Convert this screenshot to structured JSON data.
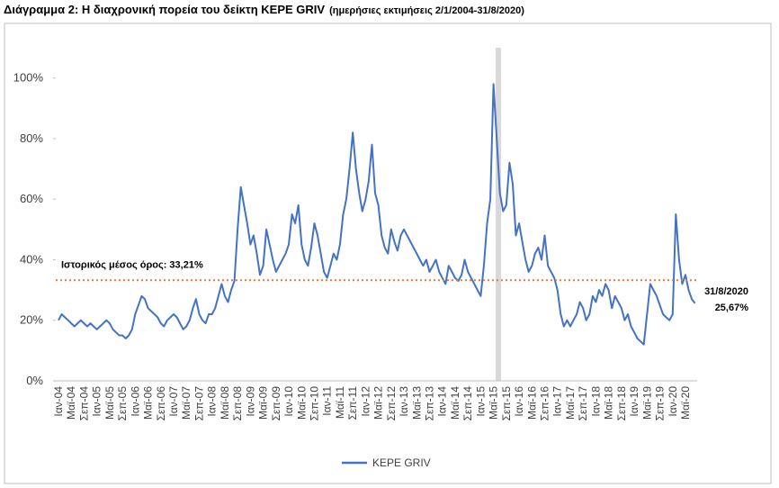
{
  "chart_data": {
    "type": "line",
    "title": "Διάγραμμα 2: Η διαχρονική πορεία του δείκτη ΚΕΡΕ GRIV",
    "subtitle": "(ημερήσιες εκτιμήσεις 2/1/2004-31/8/2020)",
    "categories": [
      "Ιαν-04",
      null,
      null,
      null,
      "Μαϊ-04",
      null,
      null,
      null,
      "Σεπ-04",
      null,
      null,
      null,
      "Ιαν-05",
      null,
      null,
      null,
      "Μαϊ-05",
      null,
      null,
      null,
      "Σεπ-05",
      null,
      null,
      null,
      "Ιαν-06",
      null,
      null,
      null,
      "Μαϊ-06",
      null,
      null,
      null,
      "Σεπ-06",
      null,
      null,
      null,
      "Ιαν-07",
      null,
      null,
      null,
      "Μαϊ-07",
      null,
      null,
      null,
      "Σεπ-07",
      null,
      null,
      null,
      "Ιαν-08",
      null,
      null,
      null,
      "Μαϊ-08",
      null,
      null,
      null,
      "Σεπ-08",
      null,
      null,
      null,
      "Ιαν-09",
      null,
      null,
      null,
      "Μαϊ-09",
      null,
      null,
      null,
      "Σεπ-09",
      null,
      null,
      null,
      "Ιαν-10",
      null,
      null,
      null,
      "Μαϊ-10",
      null,
      null,
      null,
      "Σεπ-10",
      null,
      null,
      null,
      "Ιαν-11",
      null,
      null,
      null,
      "Μαϊ-11",
      null,
      null,
      null,
      "Σεπ-11",
      null,
      null,
      null,
      "Ιαν-12",
      null,
      null,
      null,
      "Μαϊ-12",
      null,
      null,
      null,
      "Σεπ-12",
      null,
      null,
      null,
      "Ιαν-13",
      null,
      null,
      null,
      "Μαϊ-13",
      null,
      null,
      null,
      "Σεπ-13",
      null,
      null,
      null,
      "Ιαν-14",
      null,
      null,
      null,
      "Μαϊ-14",
      null,
      null,
      null,
      "Σεπ-14",
      null,
      null,
      null,
      "Ιαν-15",
      null,
      null,
      null,
      "Μαϊ-15",
      null,
      null,
      null,
      "Σεπ-15",
      null,
      null,
      null,
      "Ιαν-16",
      null,
      null,
      null,
      "Μαϊ-16",
      null,
      null,
      null,
      "Σεπ-16",
      null,
      null,
      null,
      "Ιαν-17",
      null,
      null,
      null,
      "Μαϊ-17",
      null,
      null,
      null,
      "Σεπ-17",
      null,
      null,
      null,
      "Ιαν-18",
      null,
      null,
      null,
      "Μαϊ-18",
      null,
      null,
      null,
      "Σεπ-18",
      null,
      null,
      null,
      "Ιαν-19",
      null,
      null,
      null,
      "Μαϊ-19",
      null,
      null,
      null,
      "Σεπ-19",
      null,
      null,
      null,
      "Ιαν-20",
      null,
      null,
      null,
      "Μαϊ-20",
      null,
      null,
      null
    ],
    "series": [
      {
        "name": "ΚΕΡΕ GRIV",
        "color": "#4472c4",
        "values": [
          20,
          22,
          21,
          20,
          19,
          18,
          19,
          20,
          19,
          18,
          19,
          18,
          17,
          18,
          19,
          20,
          19,
          17,
          16,
          15,
          15,
          14,
          15,
          17,
          22,
          25,
          28,
          27,
          24,
          23,
          22,
          21,
          19,
          18,
          20,
          21,
          22,
          21,
          19,
          17,
          18,
          20,
          24,
          27,
          22,
          20,
          19,
          22,
          22,
          24,
          28,
          32,
          28,
          26,
          30,
          33,
          50,
          64,
          58,
          52,
          45,
          48,
          42,
          35,
          38,
          50,
          45,
          40,
          36,
          38,
          40,
          42,
          45,
          55,
          52,
          58,
          45,
          40,
          38,
          44,
          52,
          48,
          42,
          36,
          34,
          38,
          42,
          40,
          45,
          55,
          60,
          70,
          82,
          70,
          62,
          56,
          60,
          66,
          78,
          62,
          58,
          48,
          44,
          42,
          50,
          46,
          43,
          48,
          50,
          48,
          46,
          44,
          42,
          40,
          38,
          40,
          36,
          38,
          40,
          36,
          34,
          32,
          38,
          36,
          34,
          33,
          35,
          40,
          36,
          34,
          32,
          30,
          28,
          38,
          52,
          60,
          98,
          80,
          62,
          56,
          58,
          72,
          65,
          48,
          52,
          46,
          40,
          36,
          38,
          42,
          44,
          40,
          48,
          38,
          36,
          34,
          30,
          22,
          18,
          20,
          18,
          20,
          22,
          26,
          24,
          20,
          22,
          28,
          26,
          30,
          28,
          32,
          30,
          24,
          28,
          26,
          24,
          20,
          22,
          18,
          16,
          14,
          13,
          12,
          22,
          32,
          30,
          28,
          25,
          22,
          21,
          20,
          22,
          55,
          40,
          32,
          35,
          30,
          27,
          25.67
        ]
      }
    ],
    "ylim": [
      0,
      110
    ],
    "yticks": [
      {
        "value": 0,
        "label": "0%"
      },
      {
        "value": 20,
        "label": "20%"
      },
      {
        "value": 40,
        "label": "40%"
      },
      {
        "value": 60,
        "label": "60%"
      },
      {
        "value": 80,
        "label": "80%"
      },
      {
        "value": 100,
        "label": "100%"
      }
    ],
    "mean": {
      "value": 33.21,
      "label": "Ιστορικός μέσος όρος: 33,21%",
      "color": "#e07b39"
    },
    "end_annotation": {
      "date": "31/8/2020",
      "label": "25,67%"
    },
    "legend": "bottom"
  }
}
